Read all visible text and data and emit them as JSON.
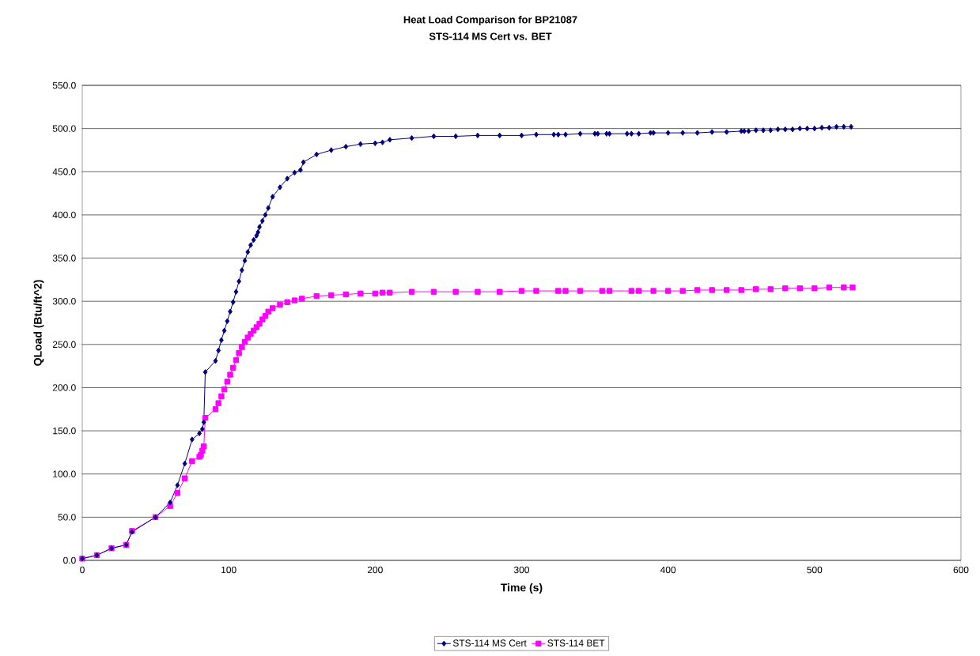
{
  "chart_data": {
    "type": "line",
    "title": "Heat Load Comparison for BP21087",
    "subtitle": "STS-114 MS Cert vs. BET",
    "xlabel": "Time (s)",
    "ylabel": "QLoad (Btu/ft^2)",
    "xlim": [
      0,
      600
    ],
    "xticks": [
      0,
      100,
      200,
      300,
      400,
      500,
      600
    ],
    "ylim": [
      0,
      550
    ],
    "yticks": [
      {
        "value": 0,
        "label": "0.0"
      },
      {
        "value": 50,
        "label": "50.0"
      },
      {
        "value": 100,
        "label": "100.0"
      },
      {
        "value": 150,
        "label": "150.0"
      },
      {
        "value": 200,
        "label": "200.0"
      },
      {
        "value": 250,
        "label": "250.0"
      },
      {
        "value": 300,
        "label": "300.0"
      },
      {
        "value": 350,
        "label": "350.0"
      },
      {
        "value": 400,
        "label": "400.0"
      },
      {
        "value": 450,
        "label": "450.0"
      },
      {
        "value": 500,
        "label": "500.0"
      },
      {
        "value": 550,
        "label": "550.0"
      }
    ],
    "grid": "y",
    "legend": "bottom",
    "line_style": "solid",
    "series": [
      {
        "name": "STS-114 MS Cert",
        "color": "#000080",
        "marker": "diamond",
        "x": [
          0,
          10,
          20,
          30,
          34,
          50,
          60,
          65,
          70,
          75,
          80,
          82,
          83,
          84,
          91,
          93,
          95,
          97,
          99,
          101,
          103,
          105,
          107,
          109,
          111,
          113,
          115,
          117,
          119,
          120,
          121,
          123,
          125,
          127,
          130,
          135,
          140,
          145,
          149,
          151,
          160,
          170,
          180,
          190,
          200,
          205,
          210,
          225,
          240,
          255,
          270,
          285,
          300,
          310,
          322,
          325,
          330,
          340,
          350,
          352,
          358,
          360,
          372,
          375,
          380,
          388,
          390,
          400,
          410,
          420,
          430,
          440,
          450,
          452,
          455,
          460,
          465,
          470,
          475,
          480,
          485,
          490,
          495,
          500,
          505,
          510,
          515,
          520,
          525
        ],
        "values": [
          2,
          6,
          14,
          18,
          33,
          50,
          67,
          87,
          112,
          140,
          147,
          152,
          160,
          218,
          231,
          243,
          255,
          266,
          277,
          288,
          299,
          311,
          323,
          336,
          347,
          357,
          365,
          371,
          376,
          380,
          386,
          393,
          400,
          408,
          421,
          432,
          442,
          449,
          452,
          461,
          470,
          475,
          479,
          482,
          483,
          484,
          487,
          489,
          491,
          491,
          492,
          492,
          492,
          493,
          493,
          493,
          493,
          494,
          494,
          494,
          494,
          494,
          494,
          494,
          494,
          495,
          495,
          495,
          495,
          495,
          496,
          496,
          497,
          497,
          497,
          498,
          498,
          498,
          499,
          499,
          499,
          500,
          500,
          500,
          501,
          501,
          502,
          502,
          502
        ]
      },
      {
        "name": "STS-114 BET",
        "color": "#ff00ff",
        "marker": "square",
        "x": [
          0,
          10,
          20,
          30,
          34,
          50,
          60,
          65,
          70,
          75,
          80,
          81,
          82,
          83,
          84,
          91,
          93,
          95,
          97,
          99,
          101,
          103,
          105,
          107,
          109,
          111,
          113,
          115,
          117,
          119,
          121,
          123,
          125,
          127,
          130,
          135,
          140,
          145,
          150,
          160,
          170,
          180,
          190,
          200,
          205,
          210,
          225,
          240,
          255,
          270,
          285,
          300,
          310,
          325,
          330,
          340,
          355,
          360,
          375,
          380,
          390,
          400,
          410,
          420,
          430,
          440,
          450,
          460,
          470,
          480,
          490,
          500,
          510,
          520,
          526
        ],
        "values": [
          2,
          6,
          14,
          18,
          34,
          50,
          63,
          78,
          95,
          115,
          120,
          122,
          127,
          132,
          165,
          175,
          182,
          190,
          198,
          207,
          215,
          223,
          232,
          240,
          247,
          253,
          258,
          262,
          266,
          270,
          274,
          279,
          283,
          288,
          292,
          296,
          299,
          301,
          303,
          306,
          307,
          308,
          309,
          309,
          310,
          310,
          311,
          311,
          311,
          311,
          311,
          312,
          312,
          312,
          312,
          312,
          312,
          312,
          312,
          312,
          312,
          312,
          312,
          313,
          313,
          313,
          313,
          314,
          314,
          315,
          315,
          315,
          316,
          316,
          316
        ]
      }
    ]
  }
}
